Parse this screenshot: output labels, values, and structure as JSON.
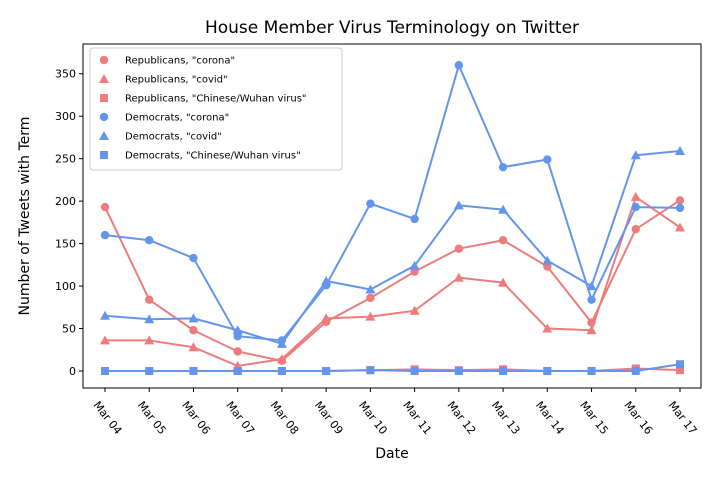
{
  "chart_data": {
    "type": "line",
    "title": "House Member Virus Terminology on Twitter",
    "xlabel": "Date",
    "ylabel": "Number of Tweets with Term",
    "x": [
      "Mar 04",
      "Mar 05",
      "Mar 06",
      "Mar 07",
      "Mar 08",
      "Mar 09",
      "Mar 10",
      "Mar 11",
      "Mar 12",
      "Mar 13",
      "Mar 14",
      "Mar 15",
      "Mar 16",
      "Mar 17"
    ],
    "ylim": [
      -20,
      385
    ],
    "yticks": [
      0,
      50,
      100,
      150,
      200,
      250,
      300,
      350
    ],
    "grid": false,
    "legend_position": "top-left",
    "colors": {
      "republicans": "#ee7c7c",
      "democrats": "#6495ed"
    },
    "series": [
      {
        "name": "Republicans, \"corona\"",
        "party": "republicans",
        "marker": "circle",
        "values": [
          193,
          84,
          48,
          23,
          12,
          58,
          86,
          117,
          144,
          154,
          123,
          57,
          167,
          201
        ]
      },
      {
        "name": "Republicans, \"covid\"",
        "party": "republicans",
        "marker": "triangle",
        "values": [
          36,
          36,
          28,
          6,
          14,
          62,
          64,
          71,
          110,
          104,
          50,
          48,
          205,
          169
        ]
      },
      {
        "name": "Republicans, \"Chinese/Wuhan virus\"",
        "party": "republicans",
        "marker": "square",
        "values": [
          0,
          0,
          0,
          0,
          0,
          0,
          1,
          2,
          1,
          2,
          0,
          0,
          3,
          1
        ]
      },
      {
        "name": "Democrats, \"corona\"",
        "party": "democrats",
        "marker": "circle",
        "values": [
          160,
          154,
          133,
          41,
          36,
          101,
          197,
          179,
          360,
          240,
          249,
          84,
          193,
          192
        ]
      },
      {
        "name": "Democrats, \"covid\"",
        "party": "democrats",
        "marker": "triangle",
        "values": [
          65,
          61,
          62,
          48,
          32,
          106,
          96,
          124,
          195,
          190,
          130,
          100,
          254,
          259
        ]
      },
      {
        "name": "Democrats, \"Chinese/Wuhan virus\"",
        "party": "democrats",
        "marker": "square",
        "values": [
          0,
          0,
          0,
          0,
          0,
          0,
          1,
          0,
          0,
          0,
          0,
          0,
          0,
          8
        ]
      }
    ]
  }
}
